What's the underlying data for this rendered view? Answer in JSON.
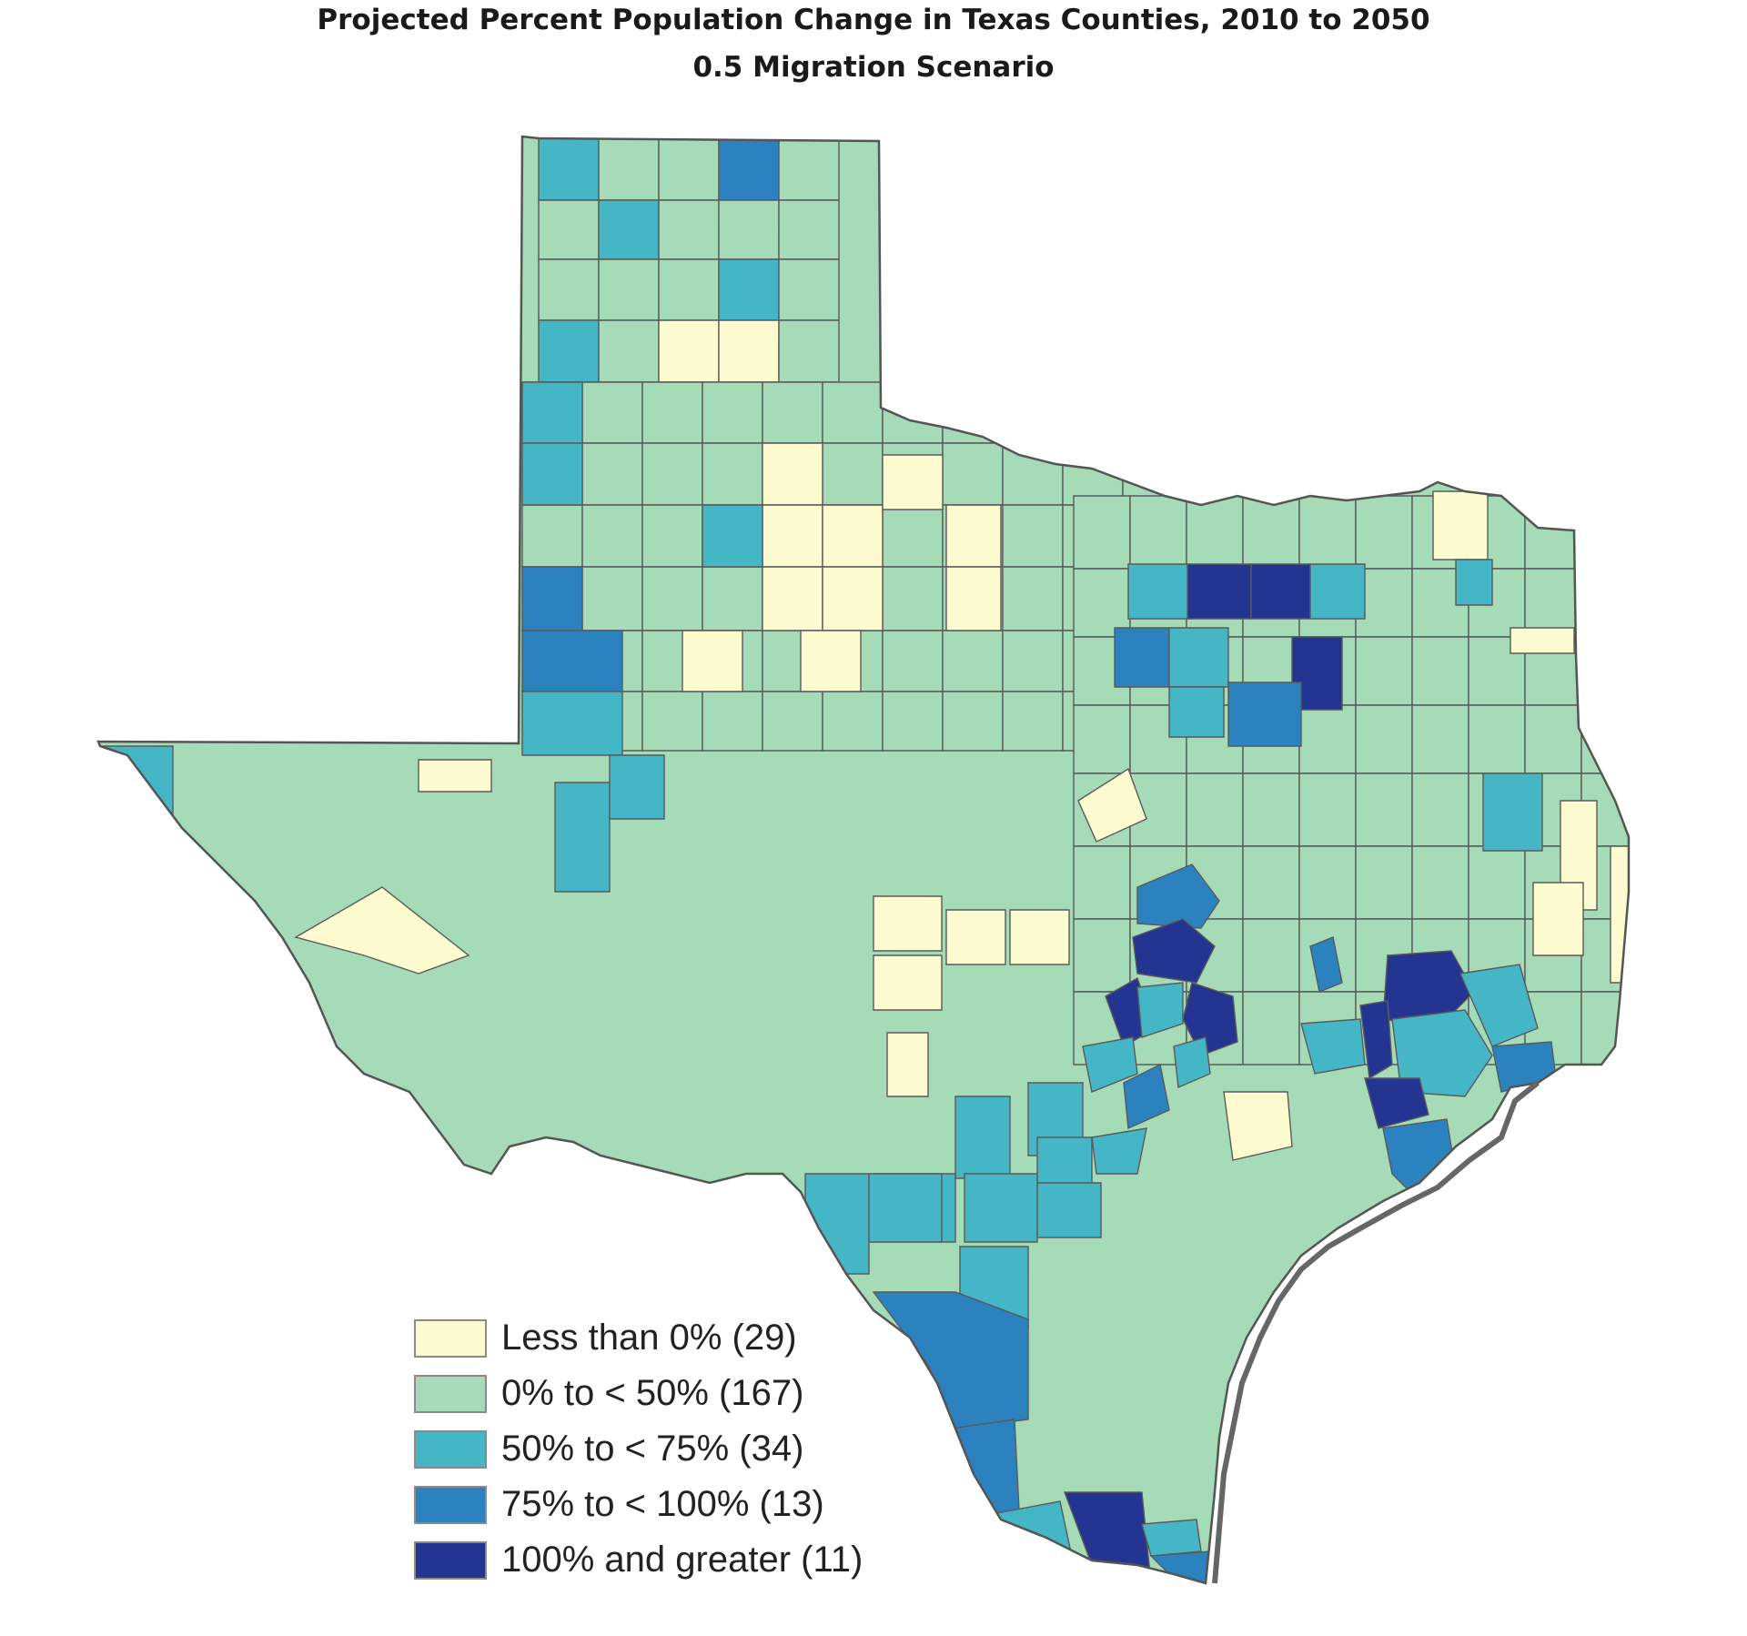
{
  "map": {
    "title": "Projected Percent Population Change in Texas Counties, 2010 to 2050",
    "subtitle": "0.5 Migration Scenario"
  },
  "colors": {
    "c0": "#fdfbcf",
    "c1": "#a5dbb6",
    "c2": "#44b6c6",
    "c3": "#2c81bf",
    "c4": "#243591",
    "border": "#5a5a5a",
    "coast": "#666666"
  },
  "legend": [
    {
      "label": "Less than 0% (29)",
      "color_key": "c0"
    },
    {
      "label": "0% to < 50% (167)",
      "color_key": "c1"
    },
    {
      "label": "50% to < 75% (34)",
      "color_key": "c2"
    },
    {
      "label": "75% to < 100% (13)",
      "color_key": "c3"
    },
    {
      "label": "100% and greater (11)",
      "color_key": "c4"
    }
  ]
}
